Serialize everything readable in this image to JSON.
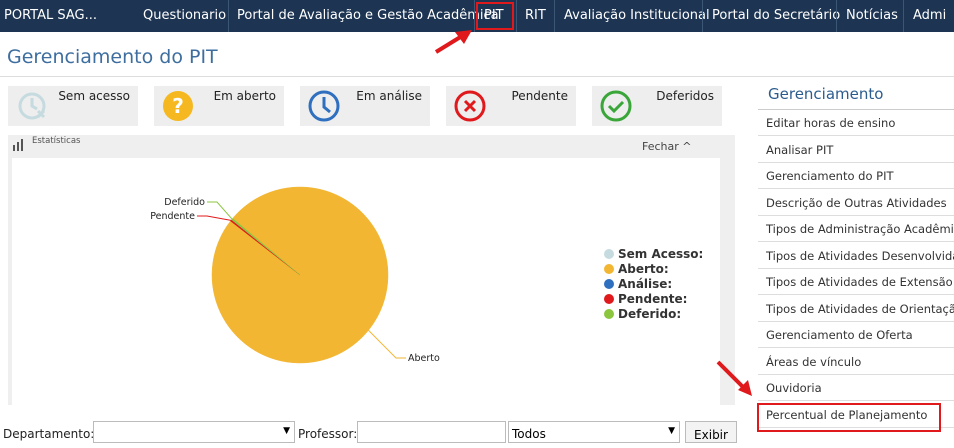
{
  "nav": {
    "brand": "PORTAL SAG...",
    "items": [
      "Questionario",
      "Portal de Avaliação e Gestão Acadêmica",
      "PIT",
      "RIT",
      "Avaliação Institucional",
      "Portal do Secretário",
      "Notícias",
      "Admi"
    ]
  },
  "page_title": "Gerenciamento do PIT",
  "status_cards": [
    "Sem acesso",
    "Em aberto",
    "Em análise",
    "Pendente",
    "Deferidos"
  ],
  "panel": {
    "title": "Estatísticas",
    "close": "Fechar"
  },
  "chart_data": {
    "type": "pie",
    "categories": [
      "Sem Acesso:",
      "Aberto:",
      "Análise:",
      "Pendente:",
      "Deferido:"
    ],
    "slice_labels": [
      null,
      "Aberto",
      null,
      "Pendente",
      "Deferido"
    ],
    "values": [
      0,
      99.4,
      0,
      0.3,
      0.3
    ],
    "colors": [
      "#c6dbe0",
      "#f2b632",
      "#2f6fbf",
      "#e0191c",
      "#8cc63f"
    ]
  },
  "sidebar": {
    "title": "Gerenciamento",
    "items": [
      "Editar horas de ensino",
      "Analisar PIT",
      "Gerenciamento do PIT",
      "Descrição de Outras Atividades",
      "Tipos de Administração Acadêmica",
      "Tipos de Atividades Desenvolvidas",
      "Tipos de Atividades de Extensão",
      "Tipos de Atividades de Orientação",
      "Gerenciamento de Oferta",
      "Áreas de vínculo",
      "Ouvidoria",
      "Percentual de Planejamento"
    ]
  },
  "filters": {
    "department_label": "Departamento:",
    "professor_label": "Professor:",
    "status_select": "Todos",
    "button": "Exibir"
  }
}
